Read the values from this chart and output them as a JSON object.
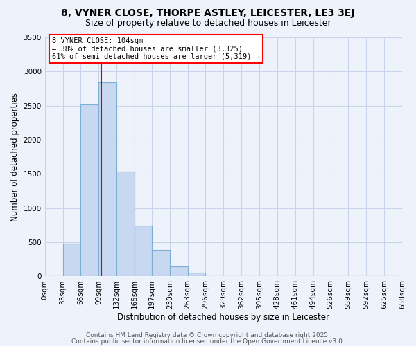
{
  "title": "8, VYNER CLOSE, THORPE ASTLEY, LEICESTER, LE3 3EJ",
  "subtitle": "Size of property relative to detached houses in Leicester",
  "xlabel": "Distribution of detached houses by size in Leicester",
  "ylabel": "Number of detached properties",
  "bar_color": "#c8d8f0",
  "bar_edge_color": "#7bafd4",
  "bin_edges": [
    0,
    33,
    66,
    99,
    132,
    165,
    197,
    230,
    263,
    296,
    329,
    362,
    395,
    428,
    461,
    494,
    526,
    559,
    592,
    625,
    658
  ],
  "bin_labels": [
    "0sqm",
    "33sqm",
    "66sqm",
    "99sqm",
    "132sqm",
    "165sqm",
    "197sqm",
    "230sqm",
    "263sqm",
    "296sqm",
    "329sqm",
    "362sqm",
    "395sqm",
    "428sqm",
    "461sqm",
    "494sqm",
    "526sqm",
    "559sqm",
    "592sqm",
    "625sqm",
    "658sqm"
  ],
  "bar_heights": [
    0,
    480,
    2515,
    2840,
    1530,
    745,
    390,
    145,
    60,
    0,
    0,
    0,
    0,
    0,
    0,
    0,
    0,
    0,
    0,
    0
  ],
  "vline_x": 104,
  "vline_color": "#cc0000",
  "ylim": [
    0,
    3500
  ],
  "yticks": [
    0,
    500,
    1000,
    1500,
    2000,
    2500,
    3000,
    3500
  ],
  "annotation_text": "8 VYNER CLOSE: 104sqm\n← 38% of detached houses are smaller (3,325)\n61% of semi-detached houses are larger (5,319) →",
  "footer1": "Contains HM Land Registry data © Crown copyright and database right 2025.",
  "footer2": "Contains public sector information licensed under the Open Government Licence v3.0.",
  "background_color": "#eef2fa",
  "plot_bg_color": "#eef2fa",
  "grid_color": "#c8d4ea",
  "title_fontsize": 10,
  "subtitle_fontsize": 9,
  "axis_label_fontsize": 8.5,
  "tick_fontsize": 7.5,
  "annotation_fontsize": 7.5,
  "footer_fontsize": 6.5
}
